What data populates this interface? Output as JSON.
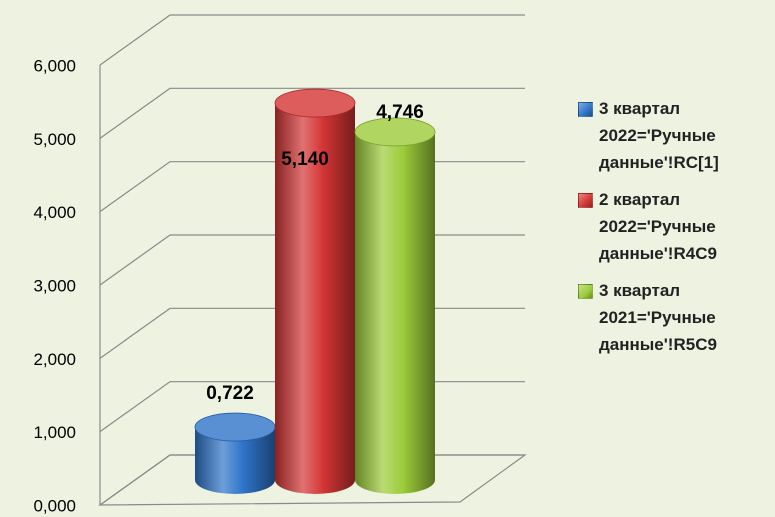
{
  "chart_data": {
    "type": "cylinder_bar",
    "categories": [
      null
    ],
    "series": [
      {
        "name": "3 квартал 2022='Ручные данные'!RC[1]",
        "color": "#2f74c9",
        "values": [
          0.722
        ],
        "value_labels": [
          "0,722"
        ]
      },
      {
        "name": "2 квартал 2022='Ручные данные'!R4C9",
        "color": "#d43535",
        "values": [
          5.14
        ],
        "value_labels": [
          "5,140"
        ]
      },
      {
        "name": "3 квартал 2021='Ручные данные'!R5C9",
        "color": "#9ccc3a",
        "values": [
          4.746
        ],
        "value_labels": [
          "4,746"
        ]
      }
    ],
    "ylim": [
      0,
      6
    ],
    "yticks": [
      {
        "value": 0,
        "label": "0,000"
      },
      {
        "value": 1,
        "label": "1,000"
      },
      {
        "value": 2,
        "label": "2,000"
      },
      {
        "value": 3,
        "label": "3,000"
      },
      {
        "value": 4,
        "label": "4,000"
      },
      {
        "value": 5,
        "label": "5,000"
      },
      {
        "value": 6,
        "label": "6,000"
      }
    ],
    "grid": true,
    "legend": "right"
  }
}
